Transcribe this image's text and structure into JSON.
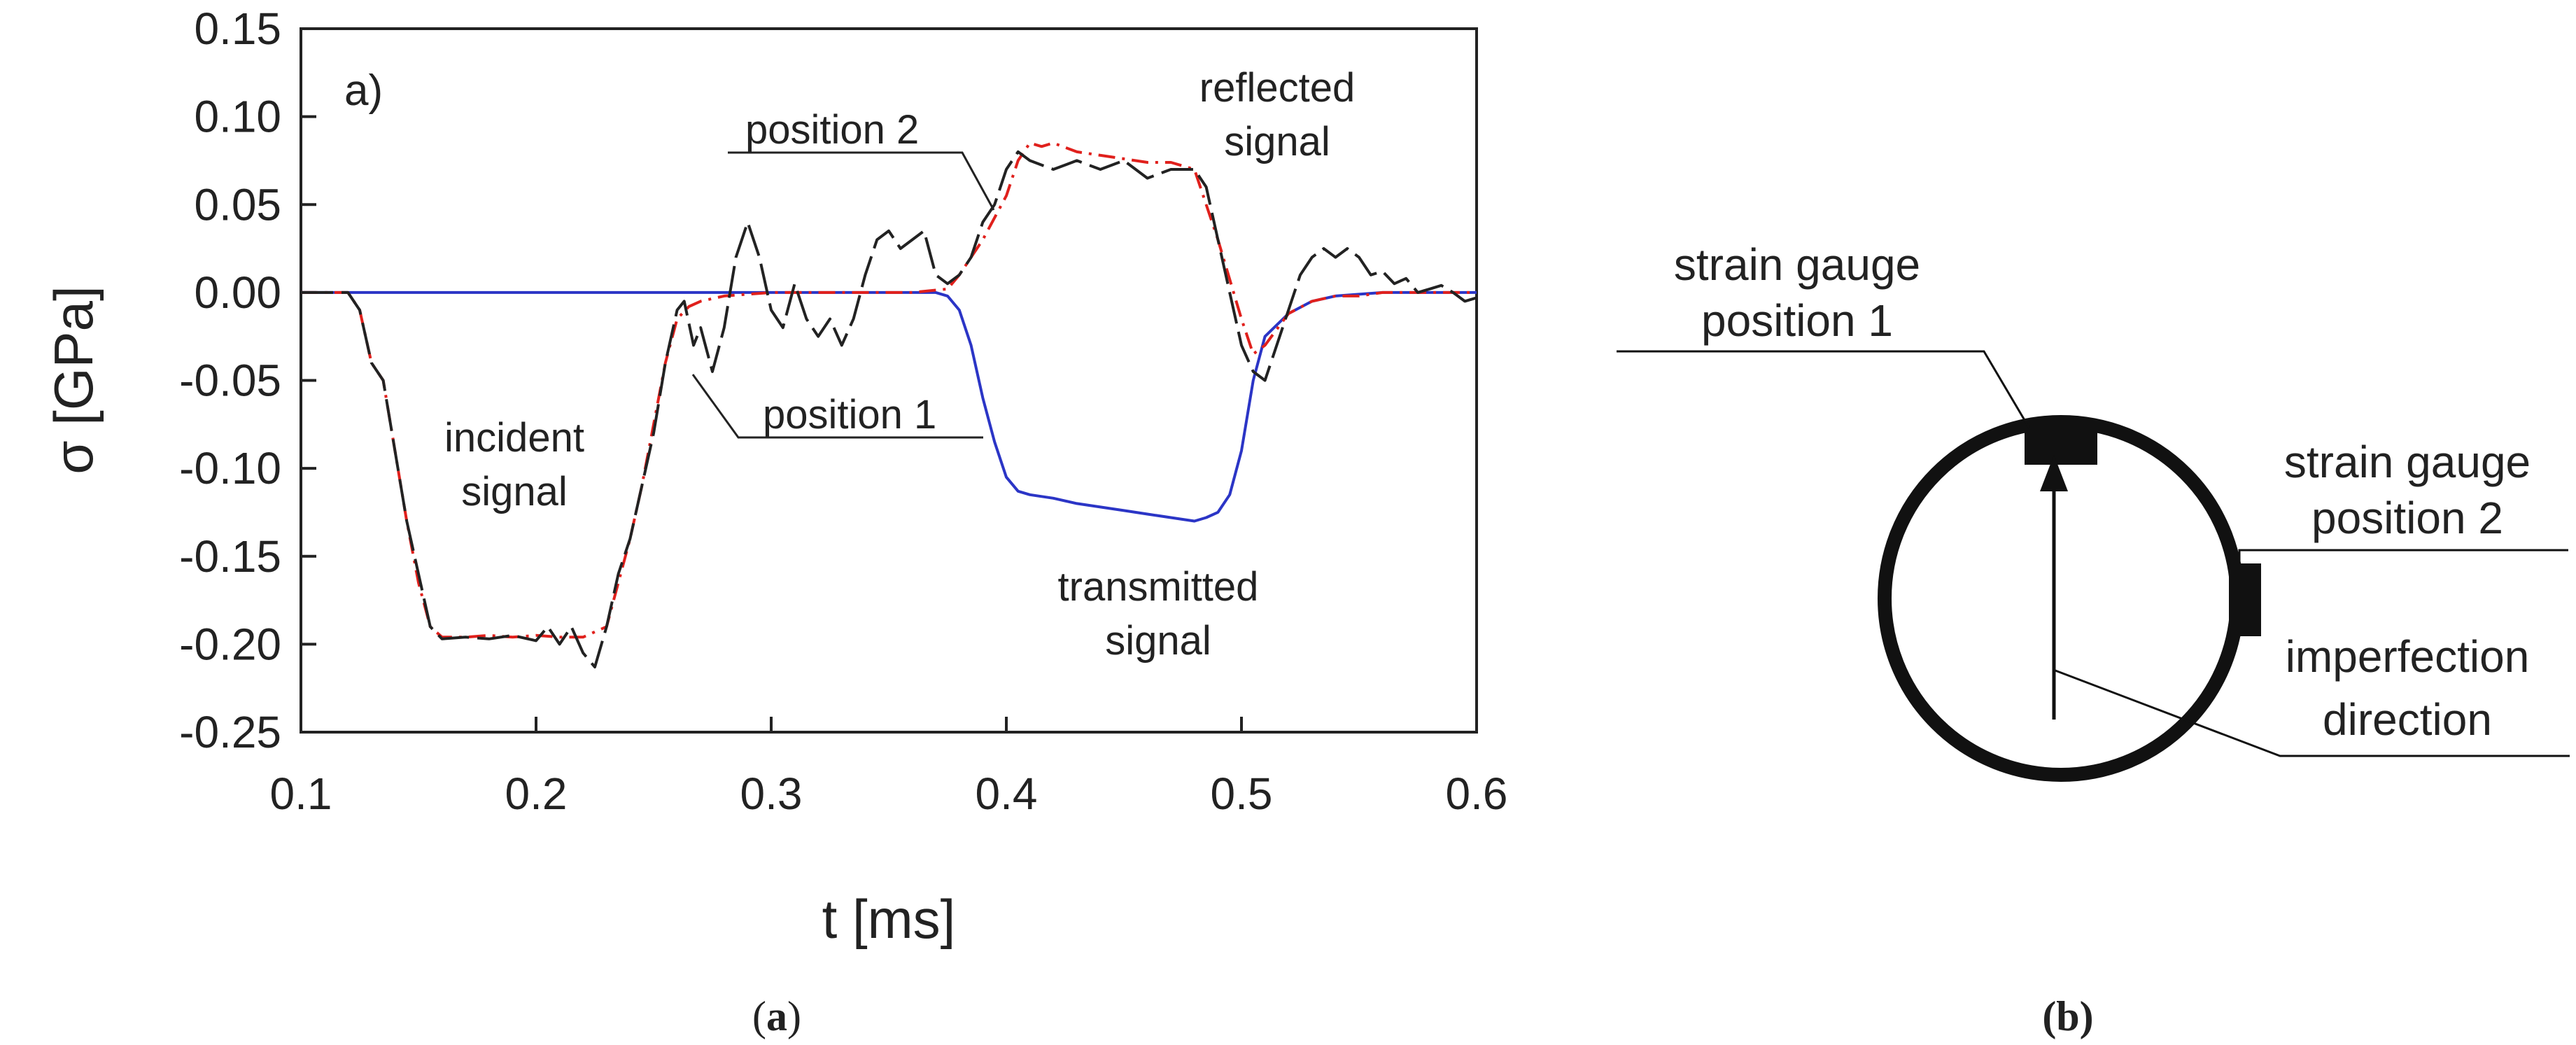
{
  "chart_data": {
    "type": "line",
    "panel_label": "a)",
    "xlabel": "t [ms]",
    "ylabel": "σ [GPa]",
    "xlim": [
      0.1,
      0.6
    ],
    "ylim": [
      -0.25,
      0.15
    ],
    "xticks": [
      "0.1",
      "0.2",
      "0.3",
      "0.4",
      "0.5",
      "0.6"
    ],
    "yticks": [
      "0.15",
      "0.10",
      "0.05",
      "0.00",
      "-0.05",
      "-0.10",
      "-0.15",
      "-0.20",
      "-0.25"
    ],
    "xtick_values": [
      0.1,
      0.2,
      0.3,
      0.4,
      0.5,
      0.6
    ],
    "ytick_values": [
      0.15,
      0.1,
      0.05,
      0.0,
      -0.05,
      -0.1,
      -0.15,
      -0.2,
      -0.25
    ],
    "series": [
      {
        "name": "position 1",
        "color": "#222222",
        "dash": "long-dash",
        "points": [
          [
            0.1,
            0
          ],
          [
            0.12,
            0
          ],
          [
            0.125,
            -0.01
          ],
          [
            0.13,
            -0.04
          ],
          [
            0.135,
            -0.05
          ],
          [
            0.14,
            -0.09
          ],
          [
            0.145,
            -0.13
          ],
          [
            0.15,
            -0.16
          ],
          [
            0.155,
            -0.19
          ],
          [
            0.16,
            -0.197
          ],
          [
            0.17,
            -0.196
          ],
          [
            0.18,
            -0.197
          ],
          [
            0.19,
            -0.195
          ],
          [
            0.2,
            -0.198
          ],
          [
            0.205,
            -0.19
          ],
          [
            0.21,
            -0.2
          ],
          [
            0.215,
            -0.19
          ],
          [
            0.22,
            -0.205
          ],
          [
            0.225,
            -0.213
          ],
          [
            0.23,
            -0.19
          ],
          [
            0.235,
            -0.16
          ],
          [
            0.24,
            -0.14
          ],
          [
            0.245,
            -0.11
          ],
          [
            0.25,
            -0.08
          ],
          [
            0.255,
            -0.04
          ],
          [
            0.26,
            -0.01
          ],
          [
            0.263,
            -0.005
          ],
          [
            0.267,
            -0.03
          ],
          [
            0.27,
            -0.02
          ],
          [
            0.275,
            -0.045
          ],
          [
            0.28,
            -0.02
          ],
          [
            0.285,
            0.02
          ],
          [
            0.29,
            0.04
          ],
          [
            0.295,
            0.02
          ],
          [
            0.3,
            -0.01
          ],
          [
            0.305,
            -0.02
          ],
          [
            0.31,
            0.005
          ],
          [
            0.315,
            -0.015
          ],
          [
            0.32,
            -0.025
          ],
          [
            0.325,
            -0.015
          ],
          [
            0.33,
            -0.03
          ],
          [
            0.335,
            -0.015
          ],
          [
            0.34,
            0.01
          ],
          [
            0.345,
            0.03
          ],
          [
            0.35,
            0.035
          ],
          [
            0.355,
            0.025
          ],
          [
            0.36,
            0.03
          ],
          [
            0.365,
            0.035
          ],
          [
            0.37,
            0.01
          ],
          [
            0.375,
            0.005
          ],
          [
            0.38,
            0.01
          ],
          [
            0.385,
            0.02
          ],
          [
            0.39,
            0.04
          ],
          [
            0.395,
            0.05
          ],
          [
            0.4,
            0.07
          ],
          [
            0.405,
            0.08
          ],
          [
            0.41,
            0.075
          ],
          [
            0.42,
            0.07
          ],
          [
            0.43,
            0.075
          ],
          [
            0.44,
            0.07
          ],
          [
            0.45,
            0.075
          ],
          [
            0.46,
            0.065
          ],
          [
            0.47,
            0.07
          ],
          [
            0.48,
            0.07
          ],
          [
            0.485,
            0.06
          ],
          [
            0.49,
            0.03
          ],
          [
            0.495,
            0.0
          ],
          [
            0.5,
            -0.03
          ],
          [
            0.505,
            -0.045
          ],
          [
            0.51,
            -0.05
          ],
          [
            0.515,
            -0.03
          ],
          [
            0.52,
            -0.01
          ],
          [
            0.525,
            0.01
          ],
          [
            0.53,
            0.02
          ],
          [
            0.535,
            0.025
          ],
          [
            0.54,
            0.02
          ],
          [
            0.545,
            0.025
          ],
          [
            0.55,
            0.02
          ],
          [
            0.555,
            0.01
          ],
          [
            0.56,
            0.012
          ],
          [
            0.565,
            0.005
          ],
          [
            0.57,
            0.008
          ],
          [
            0.575,
            0.0
          ],
          [
            0.58,
            0.002
          ],
          [
            0.585,
            0.004
          ],
          [
            0.59,
            0.0
          ],
          [
            0.595,
            -0.005
          ],
          [
            0.6,
            -0.003
          ]
        ]
      },
      {
        "name": "position 2",
        "color": "#e0201c",
        "dash": "dash-dot",
        "points": [
          [
            0.1,
            0
          ],
          [
            0.12,
            0
          ],
          [
            0.125,
            -0.01
          ],
          [
            0.13,
            -0.04
          ],
          [
            0.135,
            -0.05
          ],
          [
            0.14,
            -0.09
          ],
          [
            0.145,
            -0.13
          ],
          [
            0.15,
            -0.165
          ],
          [
            0.155,
            -0.19
          ],
          [
            0.16,
            -0.196
          ],
          [
            0.17,
            -0.196
          ],
          [
            0.18,
            -0.195
          ],
          [
            0.19,
            -0.196
          ],
          [
            0.2,
            -0.195
          ],
          [
            0.21,
            -0.196
          ],
          [
            0.22,
            -0.196
          ],
          [
            0.23,
            -0.19
          ],
          [
            0.235,
            -0.165
          ],
          [
            0.24,
            -0.14
          ],
          [
            0.245,
            -0.11
          ],
          [
            0.25,
            -0.075
          ],
          [
            0.255,
            -0.04
          ],
          [
            0.26,
            -0.015
          ],
          [
            0.265,
            -0.008
          ],
          [
            0.27,
            -0.005
          ],
          [
            0.28,
            -0.002
          ],
          [
            0.3,
            0.0
          ],
          [
            0.32,
            0.0
          ],
          [
            0.34,
            0.0
          ],
          [
            0.36,
            0.0
          ],
          [
            0.375,
            0.002
          ],
          [
            0.38,
            0.01
          ],
          [
            0.39,
            0.03
          ],
          [
            0.4,
            0.055
          ],
          [
            0.405,
            0.075
          ],
          [
            0.41,
            0.085
          ],
          [
            0.415,
            0.083
          ],
          [
            0.42,
            0.085
          ],
          [
            0.43,
            0.08
          ],
          [
            0.44,
            0.078
          ],
          [
            0.45,
            0.076
          ],
          [
            0.46,
            0.074
          ],
          [
            0.47,
            0.074
          ],
          [
            0.48,
            0.07
          ],
          [
            0.485,
            0.05
          ],
          [
            0.49,
            0.03
          ],
          [
            0.5,
            -0.015
          ],
          [
            0.505,
            -0.035
          ],
          [
            0.51,
            -0.03
          ],
          [
            0.52,
            -0.012
          ],
          [
            0.53,
            -0.005
          ],
          [
            0.54,
            -0.002
          ],
          [
            0.55,
            -0.002
          ],
          [
            0.56,
            0.0
          ],
          [
            0.58,
            0.0
          ],
          [
            0.6,
            0.0
          ]
        ]
      },
      {
        "name": "transmitted",
        "color": "#2b35c6",
        "dash": "solid",
        "points": [
          [
            0.1,
            0
          ],
          [
            0.2,
            0
          ],
          [
            0.3,
            0
          ],
          [
            0.37,
            0
          ],
          [
            0.375,
            -0.002
          ],
          [
            0.38,
            -0.01
          ],
          [
            0.385,
            -0.03
          ],
          [
            0.39,
            -0.06
          ],
          [
            0.395,
            -0.085
          ],
          [
            0.4,
            -0.105
          ],
          [
            0.405,
            -0.113
          ],
          [
            0.41,
            -0.115
          ],
          [
            0.42,
            -0.117
          ],
          [
            0.43,
            -0.12
          ],
          [
            0.44,
            -0.122
          ],
          [
            0.45,
            -0.124
          ],
          [
            0.46,
            -0.126
          ],
          [
            0.47,
            -0.128
          ],
          [
            0.48,
            -0.13
          ],
          [
            0.485,
            -0.128
          ],
          [
            0.49,
            -0.125
          ],
          [
            0.495,
            -0.115
          ],
          [
            0.5,
            -0.09
          ],
          [
            0.505,
            -0.05
          ],
          [
            0.51,
            -0.025
          ],
          [
            0.52,
            -0.012
          ],
          [
            0.53,
            -0.005
          ],
          [
            0.54,
            -0.002
          ],
          [
            0.56,
            0.0
          ],
          [
            0.6,
            0.0
          ]
        ]
      }
    ],
    "annotations": {
      "incident_line1": "incident",
      "incident_line2": "signal",
      "reflected_line1": "reflected",
      "reflected_line2": "signal",
      "transmitted_line1": "transmitted",
      "transmitted_line2": "signal",
      "position1": "position 1",
      "position2": "position 2"
    }
  },
  "diagram": {
    "gauge1_line1": "strain gauge",
    "gauge1_line2": "position 1",
    "gauge2_line1": "strain gauge",
    "gauge2_line2": "position 2",
    "imperfection_line1": "imperfection",
    "imperfection_line2": "direction"
  },
  "captions": {
    "a_open": "(",
    "a_letter": "a",
    "a_close": ")",
    "b": "(b)"
  }
}
